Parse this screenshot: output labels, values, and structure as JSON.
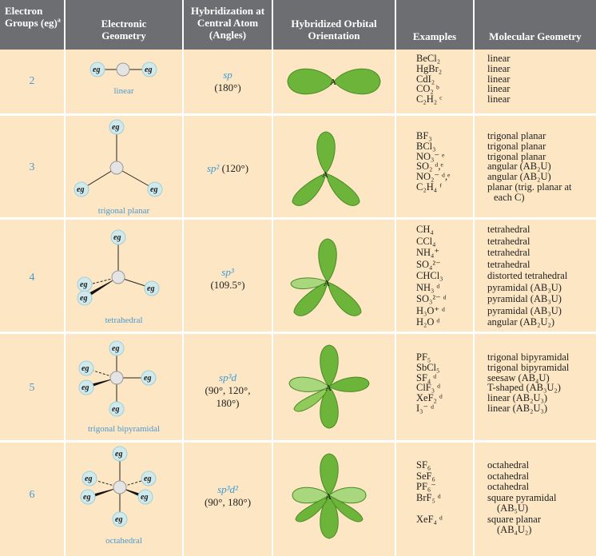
{
  "headers": {
    "groups": "Electron Groups (eg)",
    "groups_sup": "a",
    "geometry": "Electronic Geometry",
    "hybridization": "Hybridization at Central Atom (Angles)",
    "orientation": "Hybridized Orbital Orientation",
    "examples": "Examples",
    "molecular": "Molecular Geometry"
  },
  "eg_label": "eg",
  "center_atom": "A",
  "colors": {
    "header_bg": "#6d6e71",
    "row_bg": "#fde6c3",
    "accent_blue": "#4a9ad0",
    "lobe_green": "#6db53a"
  },
  "rows": [
    {
      "groups": "2",
      "geometry": "linear",
      "hyb": "sp",
      "angles": "(180°)",
      "examples": [
        "BeCl₂",
        "HgBr₂",
        "CdI₂",
        "CO₂ ᵇ",
        "C₂H₂ ᶜ"
      ],
      "molecular": [
        "linear",
        "linear",
        "linear",
        "linear",
        "linear"
      ]
    },
    {
      "groups": "3",
      "geometry": "trigonal planar",
      "hyb": "sp²",
      "angles": "(120°)",
      "examples": [
        "BF₃",
        "BCl₃",
        "NO₃⁻ ᵉ",
        "SO₂ ᵈ,ᵉ",
        "NO₂⁻ ᵈ,ᵉ",
        "C₂H₄ ᶠ"
      ],
      "molecular": [
        "trigonal planar",
        "trigonal planar",
        "trigonal planar",
        "angular (AB₂U)",
        "angular (AB₂U)",
        "planar (trig. planar at",
        "each C)"
      ]
    },
    {
      "groups": "4",
      "geometry": "tetrahedral",
      "hyb": "sp³",
      "angles": "(109.5°)",
      "examples": [
        "CH₄",
        "CCl₄",
        "NH₄⁺",
        "SO₄²⁻",
        "CHCl₃",
        "NH₃ ᵈ",
        "SO₃²⁻ ᵈ",
        "H₃O⁺ ᵈ",
        "H₂O ᵈ"
      ],
      "molecular": [
        "tetrahedral",
        "tetrahedral",
        "tetrahedral",
        "tetrahedral",
        "distorted tetrahedral",
        "pyramidal (AB₃U)",
        "pyramidal (AB₃U)",
        "pyramidal (AB₃U)",
        "angular (AB₂U₂)"
      ]
    },
    {
      "groups": "5",
      "geometry": "trigonal bipyramidal",
      "hyb": "sp³d",
      "angles": "(90°, 120°,",
      "angles2": "180°)",
      "examples": [
        "PF₅",
        "SbCl₅",
        "SF₄ ᵈ",
        "ClF₃ ᵈ",
        "XeF₂ ᵈ",
        "I₃⁻ ᵈ"
      ],
      "molecular": [
        "trigonal bipyramidal",
        "trigonal bipyramidal",
        "seesaw (AB₄U)",
        "T-shaped (AB₃U₂)",
        "linear (AB₂U₃)",
        "linear (AB₂U₃)"
      ]
    },
    {
      "groups": "6",
      "geometry": "octahedral",
      "hyb": "sp³d²",
      "angles": "(90°, 180°)",
      "examples": [
        "SF₆",
        "SeF₆",
        "PF₆⁻",
        "BrF₅ ᵈ",
        "",
        "XeF₄ ᵈ"
      ],
      "molecular": [
        "octahedral",
        "octahedral",
        "octahedral",
        "square pyramidal",
        "(AB₅U)",
        "square planar",
        "(AB₄U₂)"
      ]
    }
  ]
}
